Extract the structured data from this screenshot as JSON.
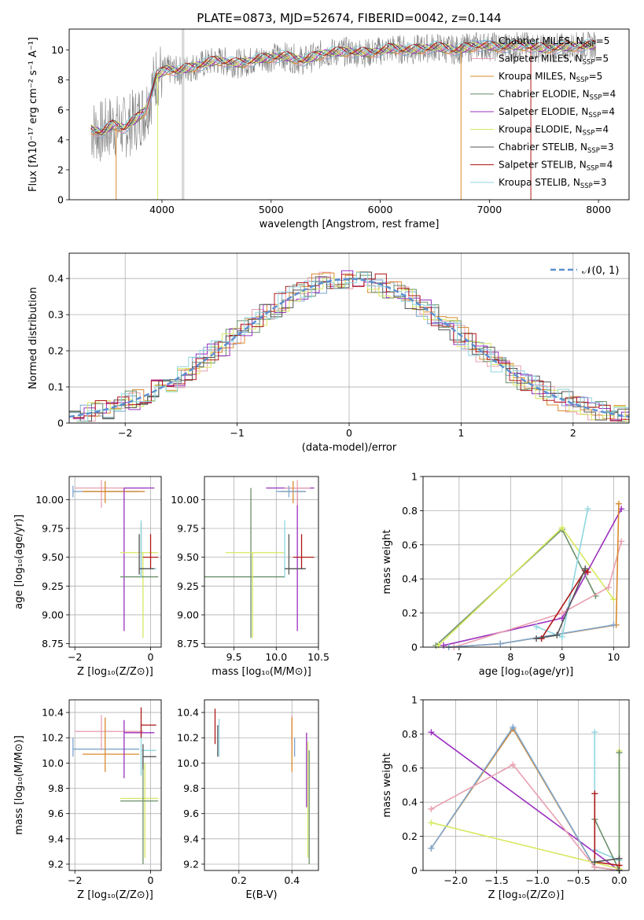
{
  "colors": {
    "Chabrier MILES": "#7ea6cf",
    "Salpeter MILES": "#e8a0b0",
    "Kroupa MILES": "#d98a2e",
    "Chabrier ELODIE": "#6a8f6a",
    "Salpeter ELODIE": "#9b30c0",
    "Kroupa ELODIE": "#d8e860",
    "Chabrier STELIB": "#555555",
    "Salpeter STELIB": "#b01818",
    "Kroupa STELIB": "#8fd6e0",
    "data": "#808080",
    "normal": "#5a8fd0"
  },
  "chart_data": [
    {
      "id": "spectrum",
      "type": "line",
      "title": "PLATE=0873, MJD=52674, FIBERID=0042, z=0.144",
      "xlabel": "wavelength [Angstrom, rest frame]",
      "ylabel": "Flux [fλ10⁻¹⁷ erg cm⁻² s⁻¹ A⁻¹]",
      "xlim": [
        3150,
        8280
      ],
      "ylim": [
        0,
        11.4
      ],
      "xticks": [
        4000,
        5000,
        6000,
        7000,
        8000
      ],
      "yticks": [
        0,
        2,
        4,
        6,
        8,
        10
      ],
      "grid": false,
      "legend": "top-right",
      "legend_entries": [
        {
          "name": "Chabrier MILES",
          "nssp": "5"
        },
        {
          "name": "Salpeter MILES",
          "nssp": "5"
        },
        {
          "name": "Kroupa MILES",
          "nssp": "5"
        },
        {
          "name": "Chabrier ELODIE",
          "nssp": "4"
        },
        {
          "name": "Salpeter ELODIE",
          "nssp": "4"
        },
        {
          "name": "Kroupa ELODIE",
          "nssp": "4"
        },
        {
          "name": "Chabrier STELIB",
          "nssp": "3"
        },
        {
          "name": "Salpeter STELIB",
          "nssp": "4"
        },
        {
          "name": "Kroupa STELIB",
          "nssp": "3"
        }
      ],
      "model_continuum": {
        "x": [
          3350,
          3450,
          3550,
          3650,
          3750,
          3850,
          3950,
          4050,
          4150,
          4300,
          4500,
          4700,
          4900,
          5100,
          5300,
          5500,
          5700,
          5900,
          6100,
          6300,
          6500,
          6700,
          6900,
          7100,
          7300,
          7500,
          7700,
          7900
        ],
        "y": [
          4.7,
          4.5,
          5.0,
          4.8,
          5.3,
          6.0,
          8.3,
          8.7,
          8.6,
          8.9,
          9.3,
          9.1,
          9.4,
          9.6,
          9.3,
          9.8,
          9.9,
          9.8,
          10.1,
          10.0,
          10.2,
          10.0,
          10.3,
          10.2,
          10.3,
          10.1,
          10.2,
          10.3
        ]
      }
    },
    {
      "id": "residuals",
      "type": "line",
      "xlabel": "(data-model)/error",
      "ylabel": "Normed distribution",
      "xlim": [
        -2.5,
        2.5
      ],
      "ylim": [
        0,
        0.47
      ],
      "xticks": [
        -2,
        -1,
        0,
        1,
        2
      ],
      "yticks": [
        0.0,
        0.1,
        0.2,
        0.3,
        0.4
      ],
      "grid": true,
      "legend": "top-right",
      "normal_label": "𝒩(0, 1)"
    },
    {
      "id": "age_vs_Z",
      "type": "scatter",
      "xlabel": "Z [log₁₀(Z/Z⊙)]",
      "ylabel": "age  [log₁₀(age/yr)]",
      "xlim": [
        -2.15,
        0.28
      ],
      "ylim": [
        8.72,
        10.2
      ],
      "xticks": [
        -2,
        0
      ],
      "yticks": [
        8.75,
        9.0,
        9.25,
        9.5,
        9.75,
        10.0
      ],
      "ytick_labels": [
        "8.75",
        "9.00",
        "9.25",
        "9.50",
        "9.75",
        "10.00"
      ],
      "grid": true,
      "points": [
        {
          "series": "Chabrier MILES",
          "x": -2.05,
          "xe": [
            -2.05,
            -0.3
          ],
          "y": 10.07,
          "ye": [
            10.02,
            10.12
          ]
        },
        {
          "series": "Salpeter MILES",
          "x": -1.3,
          "xe": [
            -2.0,
            -0.15
          ],
          "y": 10.1,
          "ye": [
            9.93,
            10.17
          ]
        },
        {
          "series": "Kroupa MILES",
          "x": -1.2,
          "xe": [
            -1.8,
            -0.15
          ],
          "y": 10.07,
          "ye": [
            9.97,
            10.16
          ]
        },
        {
          "series": "Salpeter ELODIE",
          "x": -0.7,
          "xe": [
            -0.7,
            0.1
          ],
          "y": 10.1,
          "ye": [
            8.86,
            10.1
          ]
        },
        {
          "series": "Kroupa ELODIE",
          "x": -0.2,
          "xe": [
            -0.8,
            0.2
          ],
          "y": 9.54,
          "ye": [
            8.8,
            9.54
          ]
        },
        {
          "series": "Chabrier ELODIE",
          "x": -0.25,
          "xe": [
            -0.8,
            0.2
          ],
          "y": 9.33,
          "ye": [
            9.33,
            9.8
          ]
        },
        {
          "series": "Kroupa STELIB",
          "x": -0.25,
          "xe": [
            -0.25,
            0.15
          ],
          "y": 9.4,
          "ye": [
            9.32,
            9.82
          ]
        },
        {
          "series": "Salpeter STELIB",
          "x": 0.0,
          "xe": [
            -0.2,
            0.2
          ],
          "y": 9.5,
          "ye": [
            9.4,
            9.7
          ]
        },
        {
          "series": "Chabrier STELIB",
          "x": -0.3,
          "xe": [
            -0.3,
            0.1
          ],
          "y": 9.4,
          "ye": [
            9.35,
            9.7
          ]
        }
      ]
    },
    {
      "id": "age_vs_mass",
      "type": "scatter",
      "xlabel": "mass [log₁₀(M/M⊙)]",
      "xlim": [
        9.15,
        10.5
      ],
      "ylim": [
        8.72,
        10.2
      ],
      "xticks": [
        9.5,
        10.0,
        10.5
      ],
      "xtick_labels": [
        "9.5",
        "10.0",
        "10.5"
      ],
      "yticks": [
        8.75,
        9.0,
        9.25,
        9.5,
        9.75,
        10.0
      ],
      "ytick_labels": [
        "8.75",
        "9.00",
        "9.25",
        "9.50",
        "9.75",
        "10.00"
      ],
      "grid": true,
      "points": [
        {
          "series": "Salpeter ELODIE",
          "x": 10.25,
          "xe": [
            9.88,
            10.45
          ],
          "y": 10.1,
          "ye": [
            8.86,
            10.1
          ]
        },
        {
          "series": "Chabrier ELODIE",
          "x": 9.7,
          "xe": [
            9.15,
            10.1
          ],
          "y": 9.33,
          "ye": [
            8.8,
            10.1
          ]
        },
        {
          "series": "Kroupa ELODIE",
          "x": 9.72,
          "xe": [
            9.4,
            10.1
          ],
          "y": 9.54,
          "ye": [
            8.8,
            9.54
          ]
        },
        {
          "series": "Salpeter MILES",
          "x": 10.25,
          "xe": [
            10.1,
            10.4
          ],
          "y": 10.1,
          "ye": [
            9.95,
            10.17
          ]
        },
        {
          "series": "Kroupa MILES",
          "x": 10.2,
          "xe": [
            10.05,
            10.35
          ],
          "y": 10.07,
          "ye": [
            9.97,
            10.16
          ]
        },
        {
          "series": "Chabrier MILES",
          "x": 10.15,
          "xe": [
            10.0,
            10.35
          ],
          "y": 10.07,
          "ye": [
            10.02,
            10.12
          ]
        },
        {
          "series": "Kroupa STELIB",
          "x": 10.1,
          "xe": [
            10.1,
            10.35
          ],
          "y": 9.4,
          "ye": [
            9.32,
            9.82
          ]
        },
        {
          "series": "Salpeter STELIB",
          "x": 10.3,
          "xe": [
            10.2,
            10.45
          ],
          "y": 9.5,
          "ye": [
            9.4,
            9.7
          ]
        },
        {
          "series": "Chabrier STELIB",
          "x": 10.15,
          "xe": [
            10.1,
            10.35
          ],
          "y": 9.4,
          "ye": [
            9.35,
            9.7
          ]
        }
      ]
    },
    {
      "id": "weight_vs_age",
      "type": "line",
      "xlabel": "age  [log₁₀(age/yr)]",
      "ylabel": "mass weight",
      "xlim": [
        6.3,
        10.3
      ],
      "ylim": [
        0,
        1.0
      ],
      "xticks": [
        7,
        8,
        9,
        10
      ],
      "yticks": [
        0.0,
        0.2,
        0.4,
        0.6,
        0.8,
        1.0
      ],
      "grid": true,
      "series": [
        {
          "name": "Chabrier ELODIE",
          "x": [
            6.55,
            9.0,
            9.65
          ],
          "y": [
            0.01,
            0.69,
            0.3
          ]
        },
        {
          "name": "Kroupa ELODIE",
          "x": [
            6.6,
            9.0,
            10.0
          ],
          "y": [
            0.01,
            0.7,
            0.28
          ]
        },
        {
          "name": "Salpeter ELODIE",
          "x": [
            6.7,
            9.0,
            10.15
          ],
          "y": [
            0.01,
            0.17,
            0.81
          ]
        },
        {
          "name": "Salpeter MILES",
          "x": [
            6.9,
            9.0,
            9.9,
            10.15
          ],
          "y": [
            0.0,
            0.2,
            0.35,
            0.62
          ]
        },
        {
          "name": "Kroupa MILES",
          "x": [
            6.8,
            7.8,
            10.05,
            10.1
          ],
          "y": [
            0.0,
            0.02,
            0.13,
            0.84
          ]
        },
        {
          "name": "Chabrier MILES",
          "x": [
            6.8,
            7.8,
            10.0
          ],
          "y": [
            0.0,
            0.02,
            0.13
          ]
        },
        {
          "name": "Kroupa STELIB",
          "x": [
            8.5,
            9.0,
            9.5
          ],
          "y": [
            0.12,
            0.06,
            0.81
          ]
        },
        {
          "name": "Salpeter STELIB",
          "x": [
            8.6,
            9.45,
            9.5
          ],
          "y": [
            0.05,
            0.45,
            0.44
          ]
        },
        {
          "name": "Chabrier STELIB",
          "x": [
            8.5,
            8.9,
            9.45
          ],
          "y": [
            0.05,
            0.07,
            0.46
          ]
        }
      ]
    },
    {
      "id": "mass_vs_Z",
      "type": "scatter",
      "xlabel": "Z [log₁₀(Z/Z⊙)]",
      "ylabel": "mass [log₁₀(M/M⊙)]",
      "xlim": [
        -2.15,
        0.28
      ],
      "ylim": [
        9.15,
        10.5
      ],
      "xticks": [
        -2,
        0
      ],
      "yticks": [
        9.2,
        9.4,
        9.6,
        9.8,
        10.0,
        10.2,
        10.4
      ],
      "ytick_labels": [
        "9.2",
        "9.4",
        "9.6",
        "9.8",
        "10.0",
        "10.2",
        "10.4"
      ],
      "grid": true,
      "points": [
        {
          "series": "Chabrier MILES",
          "x": -2.05,
          "xe": [
            -2.05,
            -0.3
          ],
          "y": 10.11,
          "ye": [
            10.05,
            10.2
          ]
        },
        {
          "series": "Salpeter MILES",
          "x": -1.3,
          "xe": [
            -2.0,
            -0.2
          ],
          "y": 10.25,
          "ye": [
            10.1,
            10.38
          ]
        },
        {
          "series": "Kroupa MILES",
          "x": -1.2,
          "xe": [
            -1.8,
            -0.3
          ],
          "y": 10.07,
          "ye": [
            9.93,
            10.36
          ]
        },
        {
          "series": "Salpeter ELODIE",
          "x": -0.7,
          "xe": [
            -0.7,
            0.1
          ],
          "y": 10.24,
          "ye": [
            9.88,
            10.34
          ]
        },
        {
          "series": "Kroupa ELODIE",
          "x": -0.15,
          "xe": [
            -0.8,
            0.2
          ],
          "y": 9.72,
          "ye": [
            9.25,
            10.0
          ]
        },
        {
          "series": "Chabrier ELODIE",
          "x": -0.2,
          "xe": [
            -0.8,
            0.2
          ],
          "y": 9.7,
          "ye": [
            9.2,
            10.1
          ]
        },
        {
          "series": "Kroupa STELIB",
          "x": -0.25,
          "xe": [
            -0.25,
            0.15
          ],
          "y": 10.1,
          "ye": [
            9.9,
            10.3
          ]
        },
        {
          "series": "Salpeter STELIB",
          "x": -0.25,
          "xe": [
            -0.25,
            0.15
          ],
          "y": 10.3,
          "ye": [
            10.2,
            10.44
          ]
        },
        {
          "series": "Chabrier STELIB",
          "x": -0.2,
          "xe": [
            -0.2,
            0.15
          ],
          "y": 10.05,
          "ye": [
            9.95,
            10.15
          ]
        }
      ]
    },
    {
      "id": "mass_vs_ebv",
      "type": "scatter",
      "xlabel": "E(B-V)",
      "xlim": [
        0.07,
        0.5
      ],
      "ylim": [
        9.15,
        10.5
      ],
      "xticks": [
        0.2,
        0.4
      ],
      "xtick_labels": [
        "0.2",
        "0.4"
      ],
      "yticks": [
        9.2,
        9.4,
        9.6,
        9.8,
        10.0,
        10.2,
        10.4
      ],
      "ytick_labels": [
        "9.2",
        "9.4",
        "9.6",
        "9.8",
        "10.0",
        "10.2",
        "10.4"
      ],
      "grid": true,
      "points": [
        {
          "series": "Salpeter STELIB",
          "x": 0.11,
          "y": 10.3,
          "ye": [
            10.15,
            10.43
          ]
        },
        {
          "series": "Kroupa STELIB",
          "x": 0.125,
          "y": 10.1,
          "ye": [
            10.05,
            10.35
          ]
        },
        {
          "series": "Chabrier STELIB",
          "x": 0.12,
          "y": 10.1,
          "ye": [
            10.05,
            10.3
          ]
        },
        {
          "series": "Salpeter MILES",
          "x": 0.4,
          "y": 10.25,
          "ye": [
            10.1,
            10.38
          ]
        },
        {
          "series": "Kroupa MILES",
          "x": 0.4,
          "y": 10.07,
          "ye": [
            9.93,
            10.36
          ]
        },
        {
          "series": "Chabrier MILES",
          "x": 0.41,
          "y": 10.11,
          "ye": [
            10.05,
            10.2
          ]
        },
        {
          "series": "Salpeter ELODIE",
          "x": 0.455,
          "y": 10.24,
          "ye": [
            9.65,
            10.24
          ]
        },
        {
          "series": "Kroupa ELODIE",
          "x": 0.46,
          "y": 9.72,
          "ye": [
            9.25,
            10.17
          ]
        },
        {
          "series": "Chabrier ELODIE",
          "x": 0.465,
          "y": 9.7,
          "ye": [
            9.2,
            10.1
          ]
        }
      ]
    },
    {
      "id": "weight_vs_Z",
      "type": "line",
      "xlabel": "Z [log₁₀(Z/Z⊙)]",
      "ylabel": "mass weight",
      "xlim": [
        -2.4,
        0.12
      ],
      "ylim": [
        0,
        1.0
      ],
      "xticks": [
        -2.0,
        -1.5,
        -1.0,
        -0.5,
        0.0
      ],
      "xtick_labels": [
        "−2.0",
        "−1.5",
        "−1.0",
        "−0.5",
        "0.0"
      ],
      "yticks": [
        0.0,
        0.2,
        0.4,
        0.6,
        0.8,
        1.0
      ],
      "grid": true,
      "series": [
        {
          "name": "Salpeter ELODIE",
          "x": [
            -2.3,
            0.0
          ],
          "y": [
            0.81,
            0.0
          ]
        },
        {
          "name": "Kroupa MILES",
          "x": [
            -2.3,
            -1.3,
            -0.3,
            0.0
          ],
          "y": [
            0.13,
            0.83,
            0.02,
            0.0
          ]
        },
        {
          "name": "Chabrier MILES",
          "x": [
            -2.3,
            -1.3,
            -0.3,
            0.0
          ],
          "y": [
            0.13,
            0.84,
            0.02,
            0.0
          ]
        },
        {
          "name": "Salpeter MILES",
          "x": [
            -2.3,
            -1.3,
            -0.3,
            0.0
          ],
          "y": [
            0.36,
            0.62,
            0.02,
            0.0
          ]
        },
        {
          "name": "Kroupa ELODIE",
          "x": [
            -2.3,
            0.0,
            0.0
          ],
          "y": [
            0.28,
            0.01,
            0.7
          ]
        },
        {
          "name": "Kroupa STELIB",
          "x": [
            -0.3,
            -0.3,
            0.0
          ],
          "y": [
            0.81,
            0.12,
            0.06
          ]
        },
        {
          "name": "Chabrier ELODIE",
          "x": [
            -0.3,
            0.0,
            0.0
          ],
          "y": [
            0.3,
            0.0,
            0.69
          ]
        },
        {
          "name": "Salpeter STELIB",
          "x": [
            -0.3,
            -0.3,
            0.0
          ],
          "y": [
            0.45,
            0.05,
            0.03
          ]
        },
        {
          "name": "Chabrier STELIB",
          "x": [
            -0.3,
            0.0
          ],
          "y": [
            0.05,
            0.07
          ]
        }
      ]
    }
  ]
}
